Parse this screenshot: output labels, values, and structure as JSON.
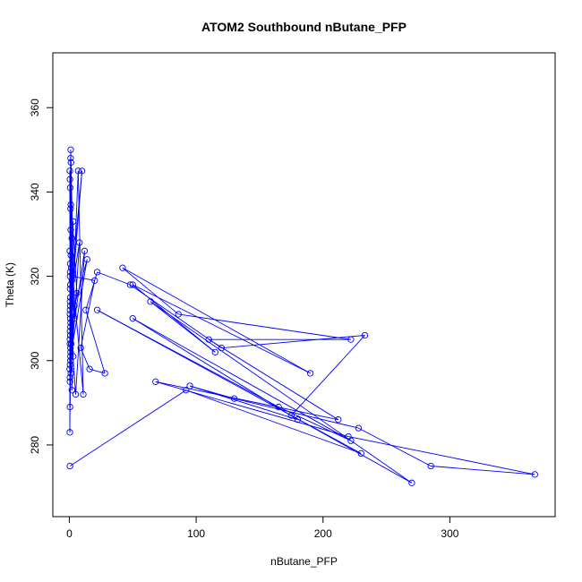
{
  "chart_data": {
    "type": "line",
    "title": "ATOM2 Southbound nButane_PFP",
    "xlabel": "nButane_PFP",
    "ylabel": "Theta (K)",
    "xlim": [
      -13,
      383
    ],
    "ylim": [
      263,
      373
    ],
    "x_ticks": [
      0,
      100,
      200,
      300
    ],
    "y_ticks": [
      280,
      300,
      320,
      340,
      360
    ],
    "x_tick_labels": [
      "0",
      "100",
      "200",
      "300"
    ],
    "y_tick_labels": [
      "280",
      "300",
      "320",
      "340",
      "360"
    ],
    "grid": false,
    "legend": "none",
    "line_color": "#0000ff",
    "marker": "open-circle",
    "series": [
      {
        "x": [
          0.5,
          0.8,
          0.5,
          1.2,
          0.6,
          0.9,
          0.4,
          1.0,
          0.7,
          0.3,
          1.5,
          0.8,
          0.5,
          1.1,
          0.6,
          0.9,
          0.4,
          1.3,
          0.7,
          0.5,
          1.0,
          0.6,
          2.0,
          0.8,
          0.5,
          1.2,
          0.7,
          0.4,
          1.0,
          0.6,
          3.0,
          0.9,
          0.5,
          1.1,
          4.0,
          0.7,
          2.0,
          0.5,
          6.0,
          0.8,
          1.0,
          3.0,
          0.6,
          8.0,
          1.2,
          2.0,
          10.0,
          0.7,
          5.0,
          12.0,
          1.5,
          4.0,
          14.0,
          0.9,
          7.0,
          11.0,
          2.5,
          20.0,
          9.0,
          16.0,
          28.0,
          13.0,
          22.0,
          48.0,
          120.0,
          233.0,
          175.0,
          270.0,
          64.0,
          115.0,
          50.0,
          190.0,
          42.0,
          86.0,
          222.0,
          110.0,
          212.0,
          68.0,
          220.0,
          367.0,
          285.0,
          228.0,
          130.0,
          95.0,
          180.0,
          50.0,
          222.0,
          165.0,
          22.0,
          230.0,
          92.0,
          0.5
        ],
        "y": [
          305.0,
          318.0,
          295.0,
          337.0,
          312.0,
          300.0,
          326.0,
          309.0,
          341.0,
          298.0,
          322.0,
          315.0,
          289.0,
          331.0,
          307.0,
          303.0,
          283.0,
          347.0,
          321.0,
          311.0,
          336.0,
          299.0,
          329.0,
          313.0,
          304.0,
          325.0,
          317.0,
          345.0,
          302.0,
          320.0,
          333.0,
          308.0,
          296.0,
          350.0,
          310.0,
          323.0,
          293.0,
          343.0,
          316.0,
          306.0,
          348.0,
          301.0,
          314.0,
          328.0,
          297.0,
          319.0,
          345.0,
          310.0,
          292.0,
          326.0,
          304.0,
          313.0,
          324.0,
          301.0,
          345.0,
          292.0,
          320.0,
          319.0,
          303.0,
          298.0,
          297.0,
          312.0,
          321.0,
          318.0,
          303.0,
          306.0,
          287.0,
          271.0,
          314.0,
          302.0,
          318.0,
          297.0,
          322.0,
          311.0,
          305.0,
          305.0,
          286.0,
          295.0,
          282.0,
          273.0,
          275.0,
          284.0,
          291.0,
          294.0,
          286.0,
          310.0,
          281.0,
          289.0,
          312.0,
          278.0,
          293.0,
          275.0
        ]
      }
    ]
  }
}
